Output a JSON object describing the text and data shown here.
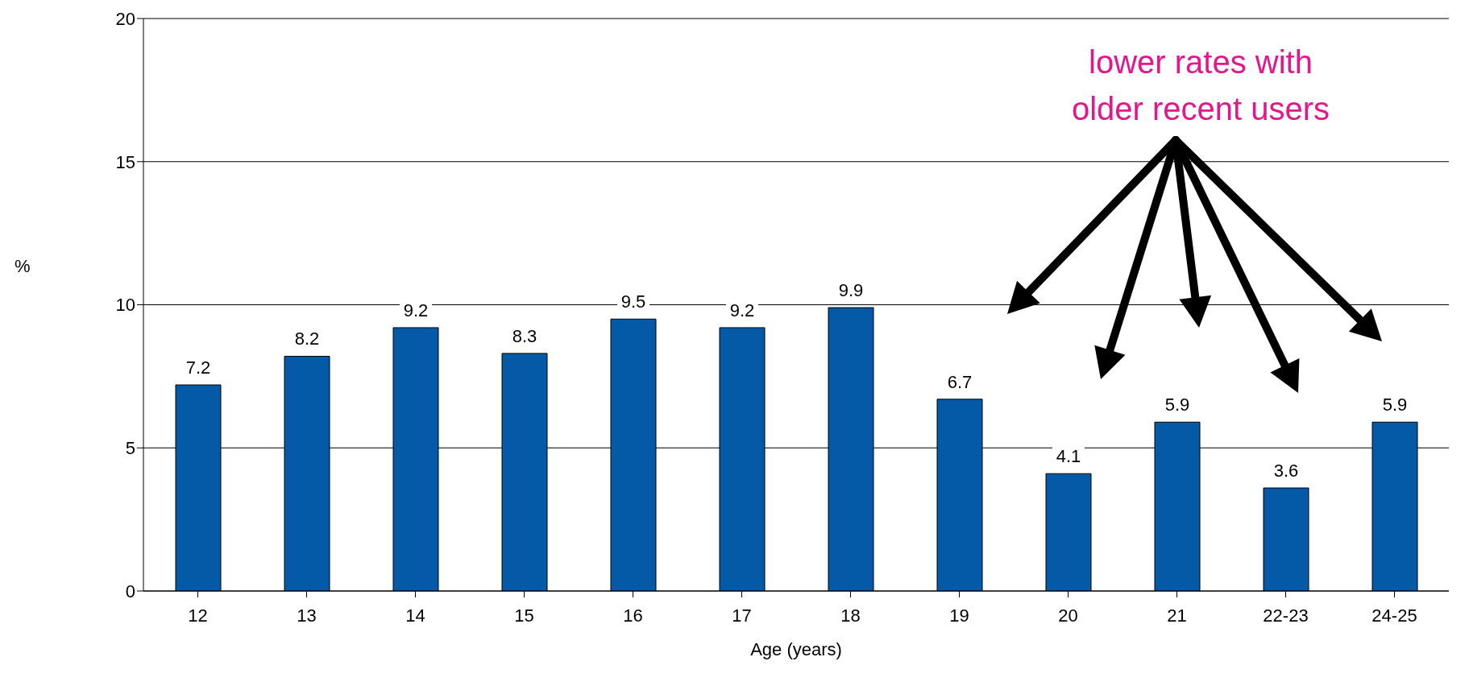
{
  "chart_data": {
    "type": "bar",
    "xlabel": "Age (years)",
    "ylabel": "%",
    "categories": [
      "12",
      "13",
      "14",
      "15",
      "16",
      "17",
      "18",
      "19",
      "20",
      "21",
      "22-23",
      "24-25"
    ],
    "values": [
      7.2,
      8.2,
      9.2,
      8.3,
      9.5,
      9.2,
      9.9,
      6.7,
      4.1,
      5.9,
      3.6,
      5.9
    ],
    "color": "#055aa8",
    "ylim": [
      0,
      20
    ],
    "yticks": [
      0,
      5,
      10,
      15,
      20
    ],
    "grid": "y",
    "data_labels": true,
    "annotations": [
      "lower rates with older recent users"
    ]
  }
}
